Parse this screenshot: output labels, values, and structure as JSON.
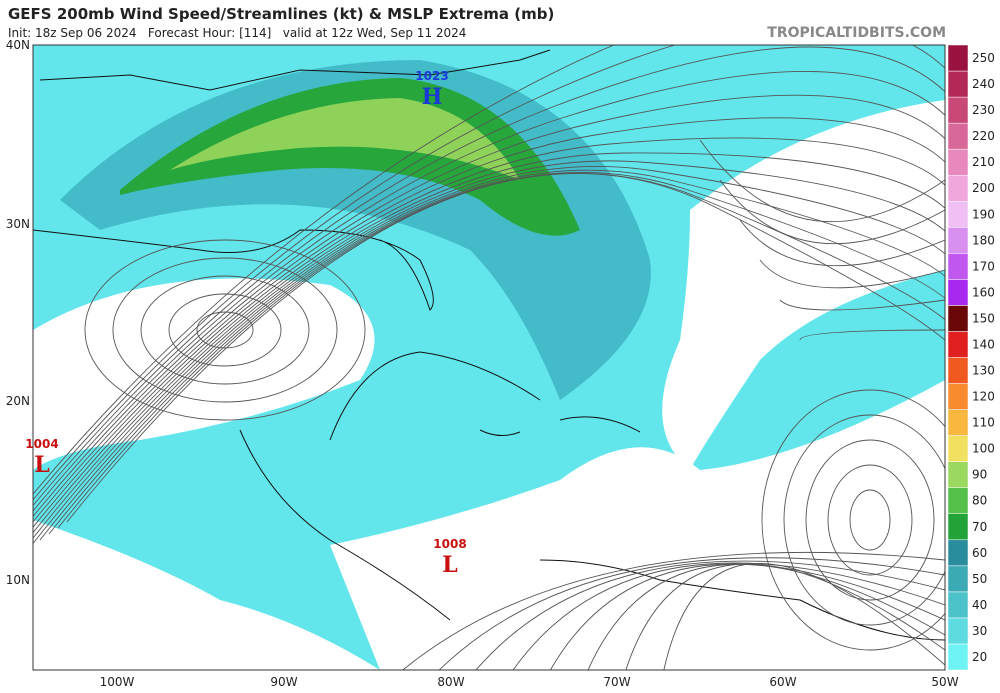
{
  "header": {
    "title": "GEFS 200mb Wind Speed/Streamlines (kt) & MSLP Extrema (mb)",
    "subtitle": "Init: 18z Sep 06 2024   Forecast Hour: [114]   valid at 12z Wed, Sep 11 2024",
    "source": "TROPICALTIDBITS.COM"
  },
  "map": {
    "lat_labels": [
      "40N",
      "30N",
      "20N",
      "10N"
    ],
    "lon_labels": [
      "100W",
      "90W",
      "80W",
      "70W",
      "60W",
      "50W"
    ],
    "pressure_centers": [
      {
        "value": "1023",
        "symbol": "H",
        "color": "#1a3ad8"
      },
      {
        "value": "1004",
        "symbol": "L",
        "color": "#c81010"
      },
      {
        "value": "1008",
        "symbol": "L",
        "color": "#c81010"
      }
    ]
  },
  "colorbar": {
    "labels": [
      20,
      30,
      40,
      50,
      60,
      70,
      80,
      90,
      100,
      110,
      120,
      130,
      140,
      150,
      160,
      170,
      180,
      190,
      200,
      210,
      220,
      230,
      240,
      250
    ],
    "colors": [
      "#6ff2f4",
      "#5edbe0",
      "#4cc3ca",
      "#3caab5",
      "#2a8d9e",
      "#23a23a",
      "#55c04a",
      "#9bd860",
      "#f2e060",
      "#f8b840",
      "#f88a30",
      "#f05a20",
      "#e02020",
      "#6a0808",
      "#a828f0",
      "#c058f0",
      "#d890f0",
      "#f0c0f4",
      "#f0a8dc",
      "#e888bc",
      "#d86898",
      "#c84878",
      "#b42858",
      "#9a1240"
    ]
  }
}
